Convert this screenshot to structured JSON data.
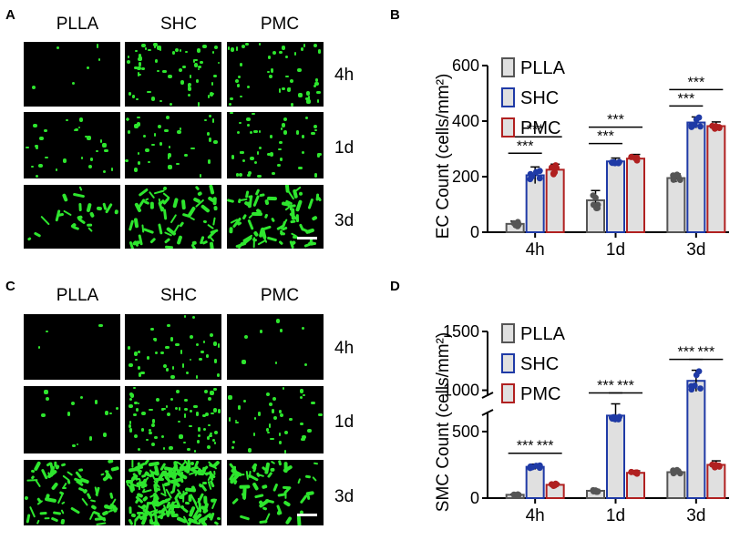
{
  "panels": {
    "A": {
      "letter": "A",
      "columns": [
        "PLLA",
        "SHC",
        "PMC"
      ],
      "rows": [
        "4h",
        "1d",
        "3d"
      ],
      "density": [
        [
          6,
          60,
          45
        ],
        [
          28,
          38,
          45
        ],
        [
          22,
          60,
          75
        ]
      ]
    },
    "B": {
      "letter": "B"
    },
    "C": {
      "letter": "C",
      "columns": [
        "PLLA",
        "SHC",
        "PMC"
      ],
      "rows": [
        "4h",
        "1d",
        "3d"
      ],
      "density": [
        [
          3,
          40,
          8
        ],
        [
          14,
          70,
          38
        ],
        [
          70,
          200,
          55
        ]
      ]
    },
    "D": {
      "letter": "D"
    }
  },
  "chart_data": [
    {
      "type": "bar",
      "panel": "B",
      "ylabel": "EC Count (cells/mm²)",
      "categories": [
        "4h",
        "1d",
        "3d"
      ],
      "ylim": [
        0,
        600
      ],
      "yticks": [
        "0",
        "200",
        "400",
        "600"
      ],
      "legend_position": "top-left",
      "series": [
        {
          "name": "PLLA",
          "color": "#555555",
          "fill": "#e0e0e0",
          "values": [
            30,
            115,
            195
          ],
          "errors": [
            10,
            35,
            15
          ]
        },
        {
          "name": "SHC",
          "color": "#1f3aa6",
          "fill": "#e0e0e0",
          "values": [
            205,
            255,
            395
          ],
          "errors": [
            30,
            12,
            20
          ]
        },
        {
          "name": "PMC",
          "color": "#b02020",
          "fill": "#e0e0e0",
          "values": [
            225,
            265,
            382
          ],
          "errors": [
            20,
            15,
            15
          ]
        }
      ],
      "significance": [
        {
          "category": "4h",
          "label": "***"
        },
        {
          "category": "4h",
          "label": "***"
        },
        {
          "category": "1d",
          "label": "***"
        },
        {
          "category": "1d",
          "label": "***"
        },
        {
          "category": "3d",
          "label": "***"
        },
        {
          "category": "3d",
          "label": "***"
        }
      ]
    },
    {
      "type": "bar",
      "panel": "D",
      "ylabel": "SMC Count (cells/mm²)",
      "categories": [
        "4h",
        "1d",
        "3d"
      ],
      "ylim": [
        0,
        1500
      ],
      "axis_break": [
        650,
        950
      ],
      "yticks": [
        "0",
        "500",
        "1000",
        "1500"
      ],
      "legend_position": "top-left",
      "series": [
        {
          "name": "PLLA",
          "color": "#555555",
          "fill": "#e0e0e0",
          "values": [
            25,
            55,
            195
          ],
          "errors": [
            5,
            10,
            20
          ]
        },
        {
          "name": "SHC",
          "color": "#1f3aa6",
          "fill": "#e0e0e0",
          "values": [
            235,
            620,
            1080
          ],
          "errors": [
            20,
            50,
            90
          ]
        },
        {
          "name": "PMC",
          "color": "#b02020",
          "fill": "#e0e0e0",
          "values": [
            100,
            190,
            250
          ],
          "errors": [
            10,
            15,
            30
          ]
        }
      ],
      "significance": [
        {
          "category": "4h",
          "label": "***"
        },
        {
          "category": "4h",
          "label": "***"
        },
        {
          "category": "1d",
          "label": "***"
        },
        {
          "category": "1d",
          "label": "***"
        },
        {
          "category": "3d",
          "label": "***"
        },
        {
          "category": "3d",
          "label": "***"
        }
      ]
    }
  ]
}
